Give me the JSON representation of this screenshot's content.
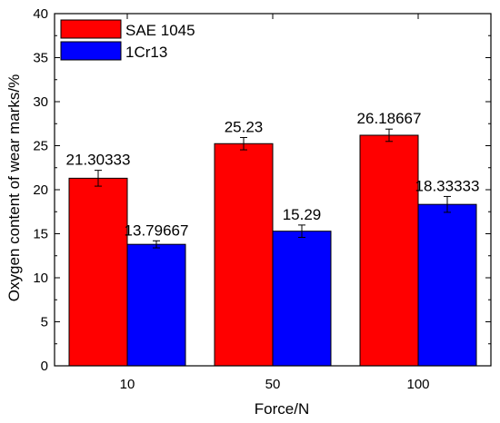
{
  "chart_data": {
    "type": "bar",
    "categories": [
      "10",
      "50",
      "100"
    ],
    "series": [
      {
        "name": "SAE 1045",
        "values": [
          21.30333,
          25.23,
          26.18667
        ],
        "errors": [
          0.9,
          0.7,
          0.7
        ],
        "labels": [
          "21.30333",
          "25.23",
          "26.18667"
        ],
        "color": "#ff0000"
      },
      {
        "name": "1Cr13",
        "values": [
          13.79667,
          15.29,
          18.33333
        ],
        "errors": [
          0.4,
          0.7,
          0.9
        ],
        "labels": [
          "13.79667",
          "15.29",
          "18.33333"
        ],
        "color": "#0000ff"
      }
    ],
    "xlabel": "Force/N",
    "ylabel": "Oxygen content of wear marks/%",
    "ylim": [
      0,
      40
    ],
    "yticks": [
      "0",
      "5",
      "10",
      "15",
      "20",
      "25",
      "30",
      "35",
      "40"
    ],
    "grid": false,
    "legend_position": "top-left"
  }
}
